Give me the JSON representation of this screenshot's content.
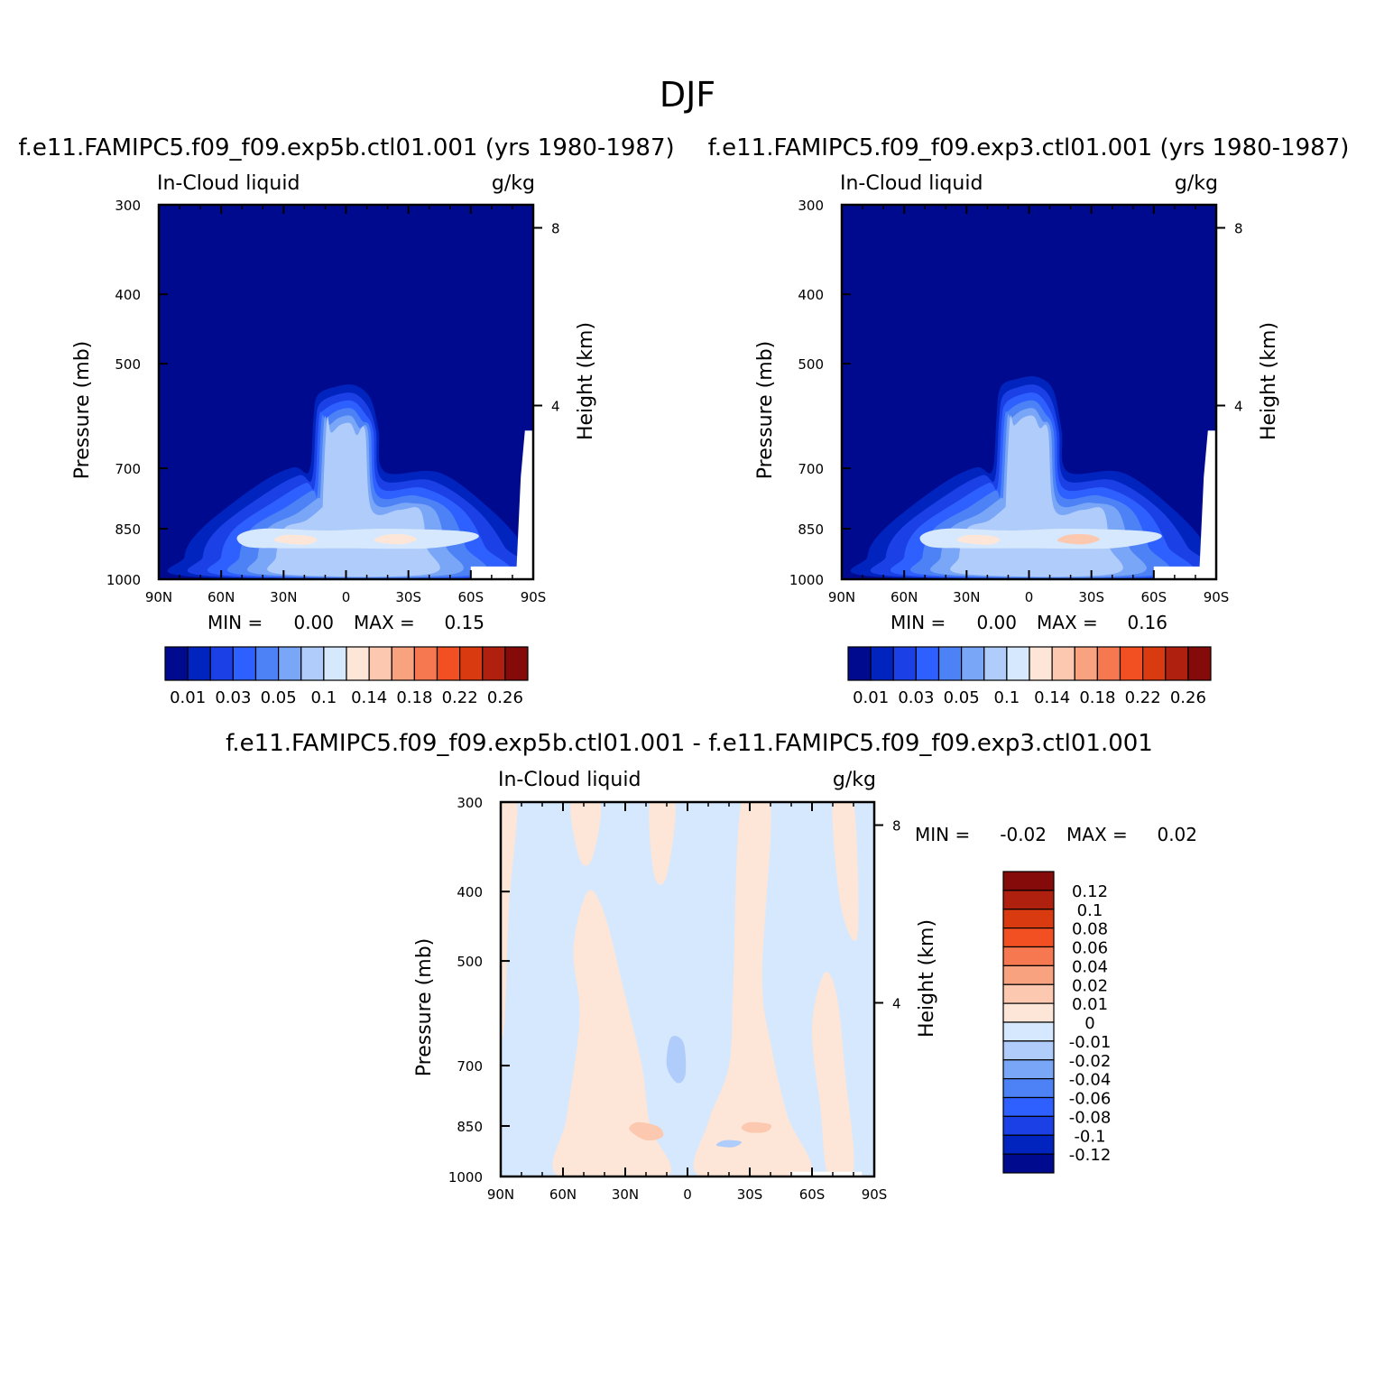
{
  "figure": {
    "title": "DJF"
  },
  "colors": {
    "abs_levels": [
      "#000a8e",
      "#0024bd",
      "#1a40e6",
      "#2e60ff",
      "#4c82f5",
      "#7aa6f7",
      "#b0ccfa",
      "#d6e8fd",
      "#fde6d7",
      "#fcc8b0",
      "#f9a27f",
      "#f57851",
      "#f24f23",
      "#d93a10",
      "#b0200e",
      "#850a0a"
    ],
    "diff_levels": [
      "#000a8e",
      "#0024bd",
      "#1a40e6",
      "#2e60ff",
      "#4c82f5",
      "#7aa6f7",
      "#b0ccfa",
      "#d6e8fd",
      "#fde6d7",
      "#fcc8b0",
      "#f9a27f",
      "#f57851",
      "#f24f23",
      "#d93a10",
      "#b0200e",
      "#850a0a"
    ],
    "missing": "#ffffff"
  },
  "panels": [
    {
      "case_title": "f.e11.FAMIPC5.f09_f09.exp5b.ctl01.001 (yrs 1980-1987)",
      "left_string": "In-Cloud liquid",
      "right_string": "g/kg",
      "minmax": {
        "min_label": "MIN =",
        "min_value": "0.00",
        "max_label": "MAX =",
        "max_value": "0.15"
      }
    },
    {
      "case_title": "f.e11.FAMIPC5.f09_f09.exp3.ctl01.001 (yrs 1980-1987)",
      "left_string": "In-Cloud liquid",
      "right_string": "g/kg",
      "minmax": {
        "min_label": "MIN =",
        "min_value": "0.00",
        "max_label": "MAX =",
        "max_value": "0.16"
      }
    },
    {
      "case_title": "f.e11.FAMIPC5.f09_f09.exp5b.ctl01.001 - f.e11.FAMIPC5.f09_f09.exp3.ctl01.001",
      "left_string": "In-Cloud liquid",
      "right_string": "g/kg",
      "minmax": {
        "min_label": "MIN =",
        "min_value": "-0.02",
        "max_label": "MAX =",
        "max_value": "0.02"
      }
    }
  ],
  "chart_data": [
    {
      "type": "heatmap",
      "title": "f.e11.FAMIPC5.f09_f09.exp5b.ctl01.001 (yrs 1980-1987)",
      "variable": "In-Cloud liquid",
      "units": "g/kg",
      "xlabel": "",
      "ylabel": "Pressure (mb)",
      "y2label": "Height (km)",
      "x_ticks": [
        "90N",
        "60N",
        "30N",
        "0",
        "30S",
        "60S",
        "90S"
      ],
      "y_ticks": [
        300,
        400,
        500,
        700,
        850,
        1000
      ],
      "y2_ticks": [
        4,
        8
      ],
      "ylim": [
        1000,
        300
      ],
      "levels": [
        0.01,
        0.02,
        0.03,
        0.04,
        0.05,
        0.07,
        0.1,
        0.12,
        0.14,
        0.16,
        0.18,
        0.2,
        0.22,
        0.24,
        0.26
      ],
      "colorbar_labels": [
        "0.01",
        "0.03",
        "0.05",
        "0.1",
        "0.14",
        "0.18",
        "0.22",
        "0.26"
      ],
      "min": 0.0,
      "max": 0.15
    },
    {
      "type": "heatmap",
      "title": "f.e11.FAMIPC5.f09_f09.exp3.ctl01.001 (yrs 1980-1987)",
      "variable": "In-Cloud liquid",
      "units": "g/kg",
      "xlabel": "",
      "ylabel": "Pressure (mb)",
      "y2label": "Height (km)",
      "x_ticks": [
        "90N",
        "60N",
        "30N",
        "0",
        "30S",
        "60S",
        "90S"
      ],
      "y_ticks": [
        300,
        400,
        500,
        700,
        850,
        1000
      ],
      "y2_ticks": [
        4,
        8
      ],
      "ylim": [
        1000,
        300
      ],
      "levels": [
        0.01,
        0.02,
        0.03,
        0.04,
        0.05,
        0.07,
        0.1,
        0.12,
        0.14,
        0.16,
        0.18,
        0.2,
        0.22,
        0.24,
        0.26
      ],
      "colorbar_labels": [
        "0.01",
        "0.03",
        "0.05",
        "0.1",
        "0.14",
        "0.18",
        "0.22",
        "0.26"
      ],
      "min": 0.0,
      "max": 0.16
    },
    {
      "type": "heatmap",
      "title": "f.e11.FAMIPC5.f09_f09.exp5b.ctl01.001 - f.e11.FAMIPC5.f09_f09.exp3.ctl01.001",
      "variable": "In-Cloud liquid",
      "units": "g/kg",
      "xlabel": "",
      "ylabel": "Pressure (mb)",
      "y2label": "Height (km)",
      "x_ticks": [
        "90N",
        "60N",
        "30N",
        "0",
        "30S",
        "60S",
        "90S"
      ],
      "y_ticks": [
        300,
        400,
        500,
        700,
        850,
        1000
      ],
      "y2_ticks": [
        4,
        8
      ],
      "ylim": [
        1000,
        300
      ],
      "levels": [
        -0.12,
        -0.1,
        -0.08,
        -0.06,
        -0.04,
        -0.02,
        -0.01,
        0,
        0.01,
        0.02,
        0.04,
        0.06,
        0.08,
        0.1,
        0.12
      ],
      "colorbar_labels": [
        "0.12",
        "0.1",
        "0.08",
        "0.06",
        "0.04",
        "0.02",
        "0.01",
        "0",
        "-0.01",
        "-0.02",
        "-0.04",
        "-0.06",
        "-0.08",
        "-0.1",
        "-0.12"
      ],
      "min": -0.02,
      "max": 0.02
    }
  ]
}
